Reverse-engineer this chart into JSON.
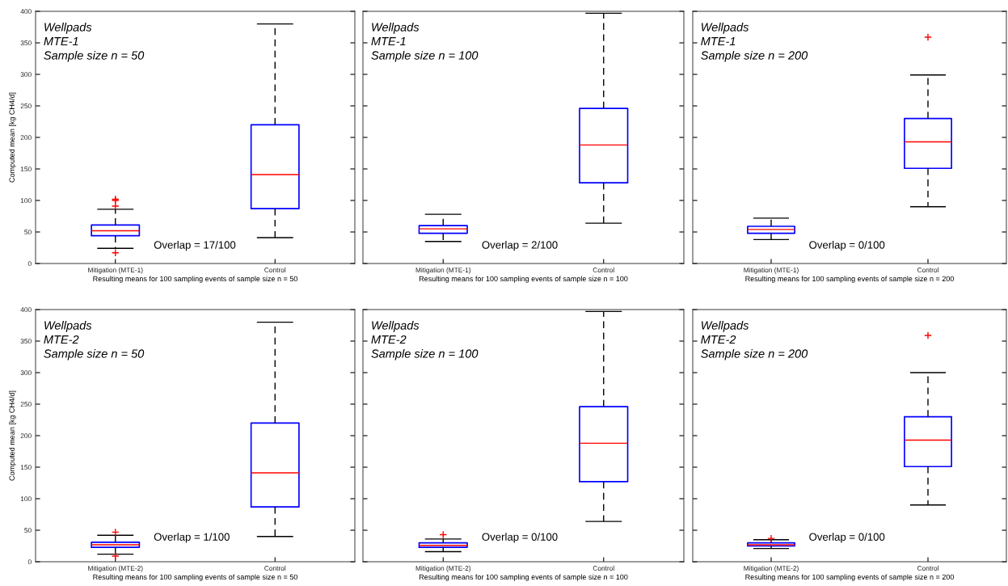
{
  "chart_data": [
    {
      "type": "box",
      "categories": [
        "Mitigation (MTE-1)",
        "Control"
      ],
      "xlabel": "Resulting means for 100 sampling events of sample size n = 50",
      "ylabel": "Computed mean [kg CH4/d]",
      "ylim": [
        0,
        400
      ],
      "yticks": [
        0,
        50,
        100,
        150,
        200,
        250,
        300,
        350,
        400
      ],
      "colors": [
        "#0000ff",
        "#0000ff"
      ],
      "boxes": [
        {
          "low": 24,
          "q1": 44,
          "median": 52,
          "q3": 61,
          "high": 86,
          "outliers": [
            17,
            91,
            100,
            102
          ]
        },
        {
          "low": 41,
          "q1": 87,
          "median": 141,
          "q3": 220,
          "high": 380
        }
      ],
      "annotations": [
        "Wellpads",
        "MTE-1",
        "Sample size n = 50",
        "Overlap = 17/100"
      ]
    },
    {
      "type": "box",
      "categories": [
        "Mitigation (MTE-1)",
        "Control"
      ],
      "xlabel": "Resulting means for 100 sampling events of sample size n = 100",
      "ylim": [
        0,
        400
      ],
      "yticks": [
        0,
        50,
        100,
        150,
        200,
        250,
        300,
        350,
        400
      ],
      "tick_labels": "x",
      "colors": [
        "#0000ff",
        "#0000ff"
      ],
      "boxes": [
        {
          "low": 35,
          "q1": 48,
          "median": 55,
          "q3": 60,
          "high": 78
        },
        {
          "low": 64,
          "q1": 128,
          "median": 188,
          "q3": 246,
          "high": 397
        }
      ],
      "annotations": [
        "Wellpads",
        "MTE-1",
        "Sample size n = 100",
        "Overlap = 2/100"
      ]
    },
    {
      "type": "box",
      "categories": [
        "Mitigation (MTE-1)",
        "Control"
      ],
      "xlabel": "Resulting means for 100 sampling events of sample size n = 200",
      "ylim": [
        0,
        400
      ],
      "yticks": [
        0,
        50,
        100,
        150,
        200,
        250,
        300,
        350,
        400
      ],
      "tick_labels": "x",
      "colors": [
        "#0000ff",
        "#0000ff"
      ],
      "boxes": [
        {
          "low": 38,
          "q1": 48,
          "median": 54,
          "q3": 59,
          "high": 72
        },
        {
          "low": 90,
          "q1": 151,
          "median": 193,
          "q3": 230,
          "high": 299,
          "outliers": [
            359
          ]
        }
      ],
      "annotations": [
        "Wellpads",
        "MTE-1",
        "Sample size n = 200",
        "Overlap = 0/100"
      ]
    },
    {
      "type": "box",
      "categories": [
        "Mitigation (MTE-2)",
        "Control"
      ],
      "xlabel": "Resulting means for 100 sampling events of sample size n = 50",
      "ylabel": "Computed mean [kg CH4/d]",
      "ylim": [
        0,
        400
      ],
      "yticks": [
        0,
        50,
        100,
        150,
        200,
        250,
        300,
        350,
        400
      ],
      "colors": [
        "#0000ff",
        "#0000ff"
      ],
      "boxes": [
        {
          "low": 12,
          "q1": 23,
          "median": 27,
          "q3": 31,
          "high": 42,
          "outliers": [
            9,
            47
          ]
        },
        {
          "low": 40,
          "q1": 87,
          "median": 141,
          "q3": 220,
          "high": 380
        }
      ],
      "annotations": [
        "Wellpads",
        "MTE-2",
        "Sample size n = 50",
        "Overlap = 1/100"
      ]
    },
    {
      "type": "box",
      "categories": [
        "Mitigation (MTE-2)",
        "Control"
      ],
      "xlabel": "Resulting means for 100 sampling events of sample size n = 100",
      "ylim": [
        0,
        400
      ],
      "yticks": [
        0,
        50,
        100,
        150,
        200,
        250,
        300,
        350,
        400
      ],
      "tick_labels": "x",
      "colors": [
        "#0000ff",
        "#0000ff"
      ],
      "boxes": [
        {
          "low": 16,
          "q1": 23,
          "median": 26,
          "q3": 30,
          "high": 36,
          "outliers": [
            43
          ]
        },
        {
          "low": 64,
          "q1": 127,
          "median": 188,
          "q3": 246,
          "high": 397
        }
      ],
      "annotations": [
        "Wellpads",
        "MTE-2",
        "Sample size n = 100",
        "Overlap = 0/100"
      ]
    },
    {
      "type": "box",
      "categories": [
        "Mitigation (MTE-2)",
        "Control"
      ],
      "xlabel": "Resulting means for 100 sampling events of sample size n = 200",
      "ylim": [
        0,
        400
      ],
      "yticks": [
        0,
        50,
        100,
        150,
        200,
        250,
        300,
        350,
        400
      ],
      "tick_labels": "x",
      "colors": [
        "#0000ff",
        "#0000ff"
      ],
      "boxes": [
        {
          "low": 21,
          "q1": 25,
          "median": 27,
          "q3": 30,
          "high": 35,
          "outliers": [
            37
          ]
        },
        {
          "low": 90,
          "q1": 151,
          "median": 193,
          "q3": 230,
          "high": 300,
          "outliers": [
            359
          ]
        }
      ],
      "annotations": [
        "Wellpads",
        "MTE-2",
        "Sample size n = 200",
        "Overlap = 0/100"
      ]
    }
  ]
}
